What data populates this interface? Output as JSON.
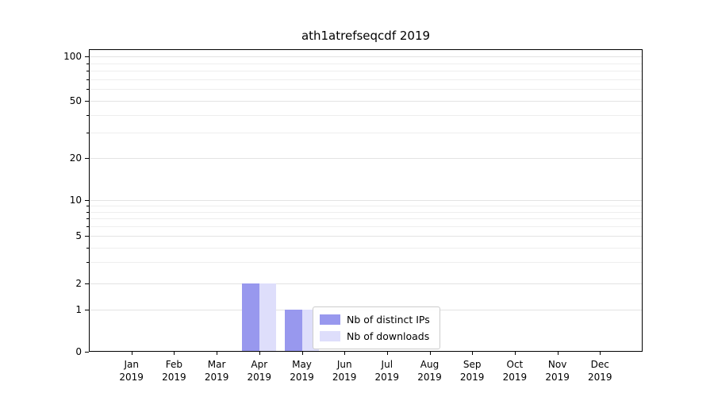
{
  "chart_data": {
    "type": "bar",
    "title": "ath1atrefseqcdf 2019",
    "x_categories_months": [
      "Jan",
      "Feb",
      "Mar",
      "Apr",
      "May",
      "Jun",
      "Jul",
      "Aug",
      "Sep",
      "Oct",
      "Nov",
      "Dec"
    ],
    "x_year": "2019",
    "series": [
      {
        "name": "Nb of distinct IPs",
        "color": "#9898ee",
        "values": [
          0,
          0,
          0,
          2,
          1,
          0,
          0,
          0,
          0,
          0,
          0,
          0
        ]
      },
      {
        "name": "Nb of downloads",
        "color": "#dedefb",
        "values": [
          0,
          0,
          0,
          2,
          1,
          0,
          0,
          0,
          0,
          0,
          0,
          0
        ]
      }
    ],
    "yscale": "symlog",
    "y_major_ticks": [
      0,
      1,
      2,
      5,
      10,
      20,
      50,
      100
    ],
    "y_minor_ticks": [
      3,
      4,
      6,
      7,
      8,
      9,
      30,
      40,
      60,
      70,
      80,
      90
    ],
    "ylim": [
      0,
      100
    ],
    "grid": "horizontal",
    "legend_position": "lower center inside plot"
  },
  "colors": {
    "grid_major": "#e3e3e3",
    "grid_minor": "#eeeeee",
    "axis": "#000000",
    "background": "#ffffff",
    "legend_border": "#cccccc"
  }
}
